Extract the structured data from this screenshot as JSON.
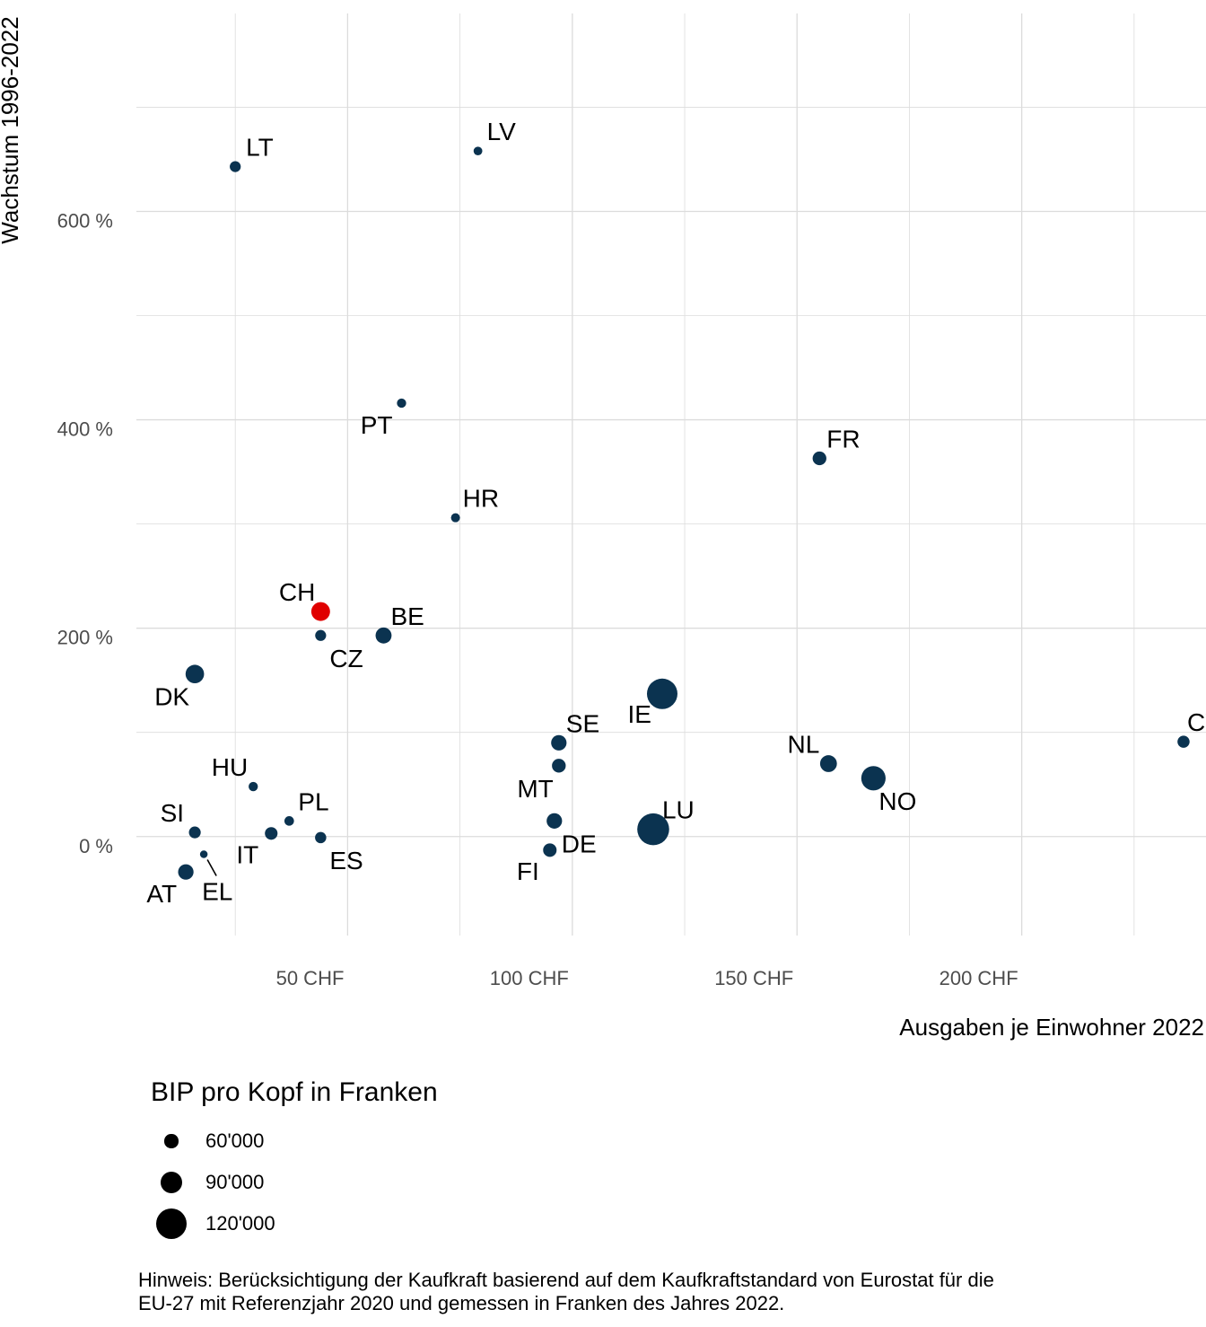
{
  "chart_data": {
    "type": "scatter",
    "xlabel": "Ausgaben je Einwohner 2022",
    "ylabel": "Wachstum 1996-2022",
    "xlim": [
      3,
      241
    ],
    "ylim": [
      -95,
      790
    ],
    "x_ticks": [
      50,
      100,
      150,
      200
    ],
    "x_tick_labels": [
      "50 CHF",
      "100 CHF",
      "150 CHF",
      "200 CHF"
    ],
    "y_ticks": [
      0,
      200,
      400,
      600
    ],
    "y_tick_labels": [
      "0 %",
      "200 %",
      "400 %",
      "600 %"
    ],
    "grid": true,
    "colors": {
      "point": "#0b3350",
      "highlight": "#e00000",
      "grid": "#dcdcdc"
    },
    "size_legend": {
      "title": "BIP pro Kopf in Franken",
      "items": [
        {
          "label": "60'000",
          "value": 60000
        },
        {
          "label": "90'000",
          "value": 90000
        },
        {
          "label": "120'000",
          "value": 120000
        }
      ]
    },
    "points": [
      {
        "label": "LT",
        "x": 25,
        "y": 643,
        "gdp": 50000
      },
      {
        "label": "LV",
        "x": 79,
        "y": 658,
        "gdp": 42000
      },
      {
        "label": "PT",
        "x": 62,
        "y": 416,
        "gdp": 44000
      },
      {
        "label": "FR",
        "x": 155,
        "y": 363,
        "gdp": 60000
      },
      {
        "label": "HR",
        "x": 74,
        "y": 306,
        "gdp": 43000
      },
      {
        "label": "CH",
        "x": 44,
        "y": 216,
        "gdp": 78000,
        "highlight": true
      },
      {
        "label": "CZ",
        "x": 44,
        "y": 193,
        "gdp": 50000
      },
      {
        "label": "BE",
        "x": 58,
        "y": 193,
        "gdp": 68000
      },
      {
        "label": "DK",
        "x": 16,
        "y": 156,
        "gdp": 77000
      },
      {
        "label": "IE",
        "x": 120,
        "y": 137,
        "gdp": 120000
      },
      {
        "label": "SE",
        "x": 97,
        "y": 90,
        "gdp": 66000
      },
      {
        "label": "MT",
        "x": 97,
        "y": 68,
        "gdp": 60000
      },
      {
        "label": "CY",
        "x": 236,
        "y": 91,
        "gdp": 54000
      },
      {
        "label": "NL",
        "x": 157,
        "y": 70,
        "gdp": 71000
      },
      {
        "label": "NO",
        "x": 167,
        "y": 56,
        "gdp": 98000
      },
      {
        "label": "HU",
        "x": 29,
        "y": 48,
        "gdp": 44000
      },
      {
        "label": "PL",
        "x": 37,
        "y": 15,
        "gdp": 45000
      },
      {
        "label": "SI",
        "x": 16,
        "y": 4,
        "gdp": 53000
      },
      {
        "label": "IT",
        "x": 33,
        "y": 3,
        "gdp": 56000
      },
      {
        "label": "ES",
        "x": 44,
        "y": -1,
        "gdp": 51000
      },
      {
        "label": "DE",
        "x": 96,
        "y": 15,
        "gdp": 66000
      },
      {
        "label": "LU",
        "x": 118,
        "y": 7,
        "gdp": 125000
      },
      {
        "label": "FI",
        "x": 95,
        "y": -13,
        "gdp": 59000
      },
      {
        "label": "EL",
        "x": 18,
        "y": -17,
        "gdp": 38000
      },
      {
        "label": "AT",
        "x": 14,
        "y": -34,
        "gdp": 66000
      }
    ]
  },
  "note": {
    "line1": "Hinweis: Berücksichtigung der Kaufkraft basierend auf dem Kaufkraftstandard von Eurostat für die",
    "line2": "EU-27 mit Referenzjahr 2020 und gemessen in Franken des Jahres 2022."
  }
}
